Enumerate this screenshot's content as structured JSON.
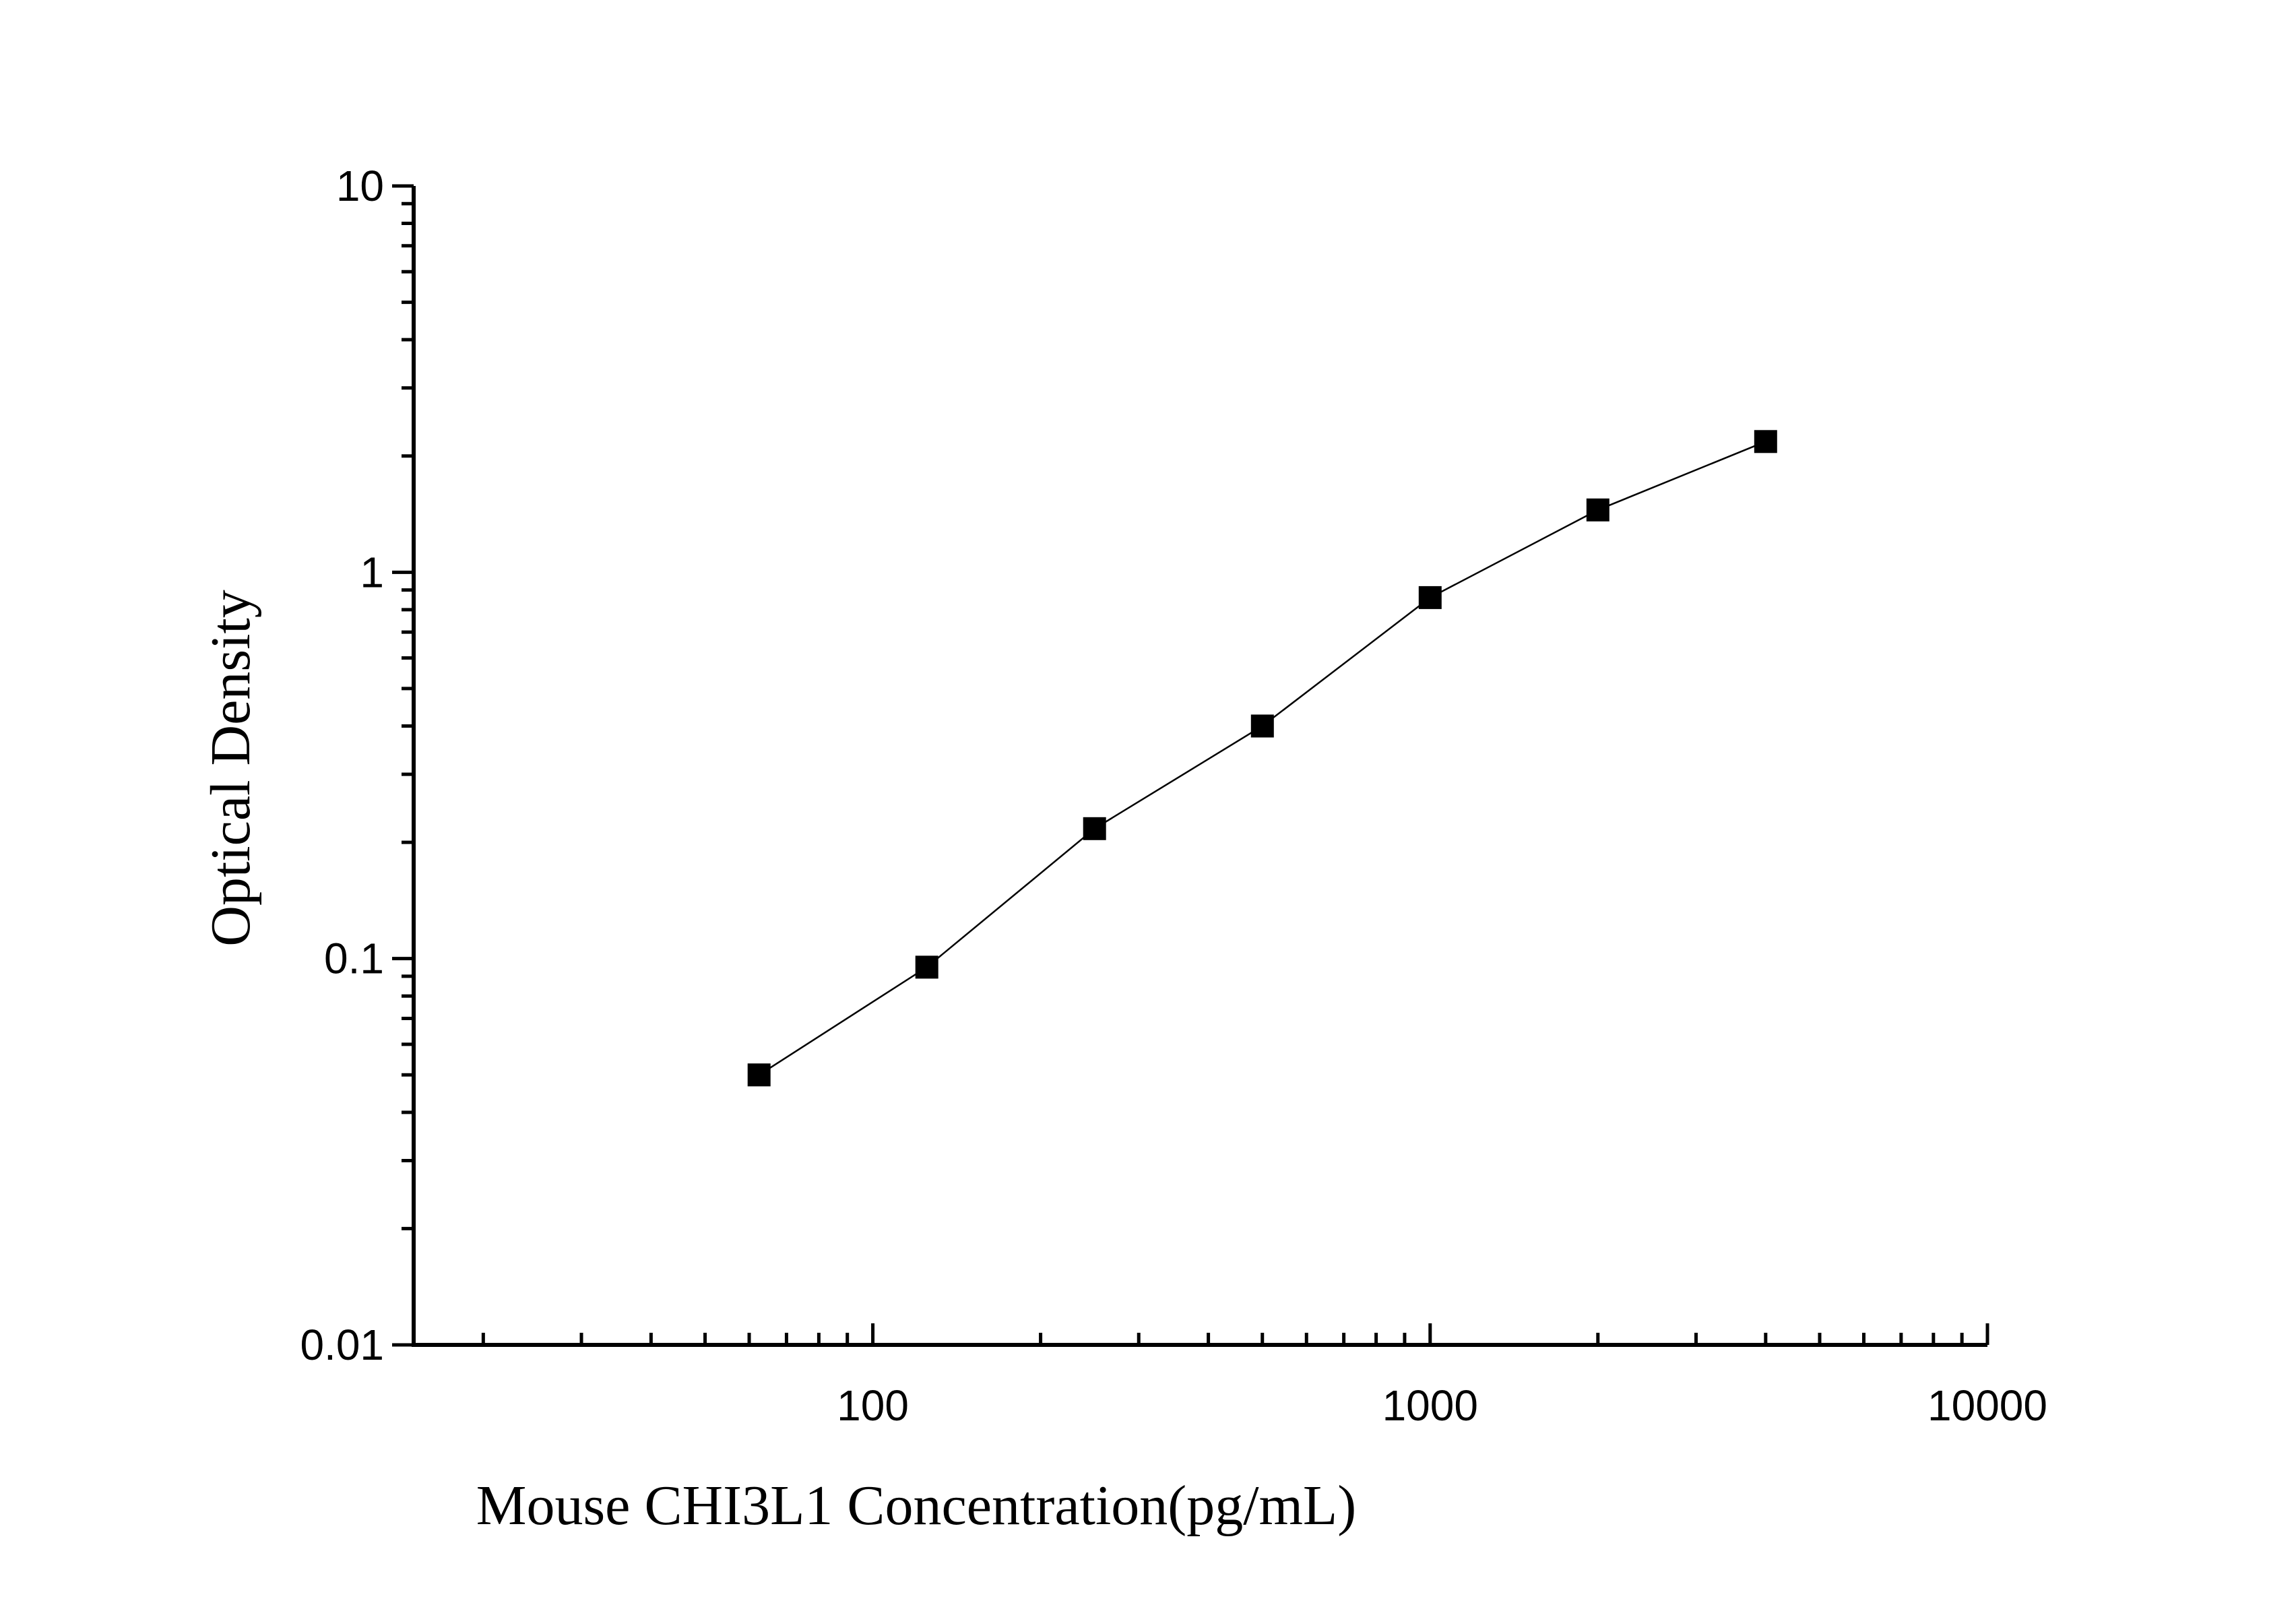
{
  "chart_data": {
    "type": "line",
    "title": "",
    "xlabel": "Mouse CHI3L1 Concentration(pg/mL)",
    "ylabel": "Optical Density",
    "x_scale": "log",
    "y_scale": "log",
    "xlim": [
      15,
      10000
    ],
    "ylim": [
      0.01,
      10
    ],
    "x_ticks": [
      {
        "value": 100,
        "label": "100"
      },
      {
        "value": 1000,
        "label": "1000"
      },
      {
        "value": 10000,
        "label": "10000"
      }
    ],
    "y_ticks": [
      {
        "value": 0.01,
        "label": "0.01"
      },
      {
        "value": 0.1,
        "label": "0.1"
      },
      {
        "value": 1,
        "label": "1"
      },
      {
        "value": 10,
        "label": "10"
      }
    ],
    "grid": false,
    "legend": "none",
    "marker": "square",
    "colors": {
      "line": "#000000",
      "marker": "#000000",
      "axis": "#000000"
    },
    "series": [
      {
        "x": [
          62.5,
          125,
          250,
          500,
          1000,
          2000,
          4000
        ],
        "y": [
          0.05,
          0.095,
          0.217,
          0.4,
          0.86,
          1.45,
          2.18
        ]
      }
    ]
  }
}
